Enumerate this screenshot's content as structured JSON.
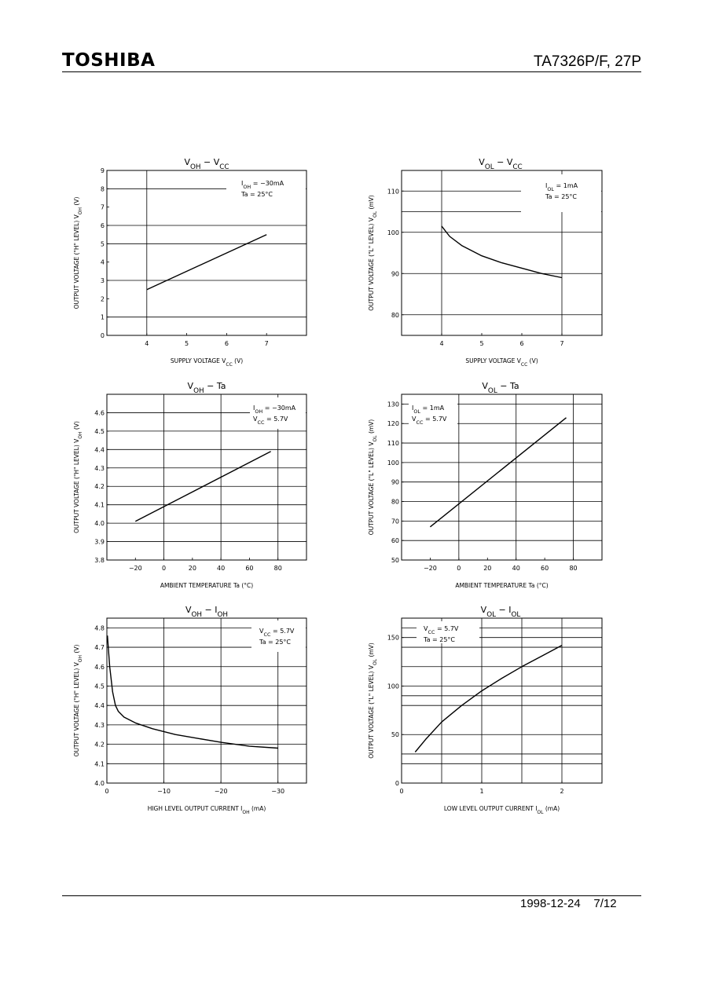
{
  "header": {
    "brand": "TOSHIBA",
    "part_number": "TA7326P/F, 27P"
  },
  "footer": {
    "date": "1998-12-24",
    "page": "7/12"
  },
  "chart_data": [
    {
      "type": "line",
      "title": {
        "main": "V",
        "sub": "OH",
        "mid": " − V",
        "sub2": "CC",
        "tail": ""
      },
      "xlabel": {
        "main": "SUPPLY VOLTAGE   V",
        "sub": "CC",
        "tail": "   (V)"
      },
      "ylabel": {
        "main": "OUTPUT VOLTAGE (\"H\" LEVEL)   V",
        "sub": "OH",
        "tail": "   (V)"
      },
      "xlim": [
        3,
        8
      ],
      "ylim": [
        0,
        9
      ],
      "xticks": [
        4,
        5,
        6,
        7
      ],
      "xtick_labels": [
        "4",
        "5",
        "6",
        "7"
      ],
      "yticks": [
        0,
        1,
        2,
        3,
        4,
        5,
        6,
        7,
        8,
        9
      ],
      "ytick_labels": [
        "0",
        "1",
        "2",
        "3",
        "4",
        "5",
        "6",
        "7",
        "8",
        "9"
      ],
      "hgrid": [
        1,
        3,
        5,
        6,
        8
      ],
      "vgrid": [
        4
      ],
      "conditions": [
        {
          "main": "I",
          "sub": "OH",
          "tail": " = −30mA"
        },
        {
          "main": "Ta = 25°C",
          "sub": "",
          "tail": ""
        }
      ],
      "series": [
        {
          "x": [
            4,
            7
          ],
          "y": [
            2.5,
            5.5
          ]
        }
      ]
    },
    {
      "type": "line",
      "title": {
        "main": "V",
        "sub": "OL",
        "mid": " − V",
        "sub2": "CC",
        "tail": ""
      },
      "xlabel": {
        "main": "SUPPLY VOLTAGE   V",
        "sub": "CC",
        "tail": "   (V)"
      },
      "ylabel": {
        "main": "OUTPUT VOLTAGE (\"L\" LEVEL)   V",
        "sub": "OL",
        "tail": "   (mV)"
      },
      "xlim": [
        3,
        8
      ],
      "ylim": [
        75,
        115
      ],
      "xticks": [
        4,
        5,
        6,
        7
      ],
      "xtick_labels": [
        "4",
        "5",
        "6",
        "7"
      ],
      "yticks": [
        80,
        90,
        100,
        110
      ],
      "ytick_labels": [
        "80",
        "90",
        "100",
        "110"
      ],
      "hgrid": [
        80,
        90,
        100,
        105,
        110
      ],
      "vgrid": [
        4,
        7
      ],
      "conditions": [
        {
          "main": "I",
          "sub": "OL",
          "tail": " = 1mA"
        },
        {
          "main": "Ta = 25°C",
          "sub": "",
          "tail": ""
        }
      ],
      "series": [
        {
          "x": [
            4.0,
            4.2,
            4.5,
            5.0,
            5.5,
            6.0,
            6.5,
            7.0
          ],
          "y": [
            101.5,
            99.0,
            96.8,
            94.3,
            92.6,
            91.3,
            90.0,
            89.0
          ]
        }
      ]
    },
    {
      "type": "line",
      "title": {
        "main": "V",
        "sub": "OH",
        "mid": " − Ta",
        "sub2": "",
        "tail": ""
      },
      "xlabel": {
        "main": "AMBIENT TEMPERATURE    Ta",
        "sub": "",
        "tail": "   (°C)"
      },
      "ylabel": {
        "main": "OUTPUT VOLTAGE (\"H\" LEVEL)   V",
        "sub": "OH",
        "tail": "   (V)"
      },
      "xlim": [
        -40,
        100
      ],
      "ylim": [
        3.8,
        4.7
      ],
      "xticks": [
        -20,
        0,
        20,
        40,
        60,
        80
      ],
      "xtick_labels": [
        "−20",
        "0",
        "20",
        "40",
        "60",
        "80"
      ],
      "yticks": [
        3.8,
        3.9,
        4.0,
        4.1,
        4.2,
        4.3,
        4.4,
        4.5,
        4.6
      ],
      "ytick_labels": [
        "3.8",
        "3.9",
        "4.0",
        "4.1",
        "4.2",
        "4.3",
        "4.4",
        "4.5",
        "4.6"
      ],
      "hgrid": [
        3.9,
        4.0,
        4.1,
        4.2,
        4.3,
        4.4,
        4.5,
        4.6
      ],
      "vgrid": [
        0,
        40,
        80
      ],
      "conditions": [
        {
          "main": "I",
          "sub": "OH",
          "tail": " = −30mA"
        },
        {
          "main": "V",
          "sub": "CC",
          "tail": " = 5.7V"
        }
      ],
      "series": [
        {
          "x": [
            -20,
            75
          ],
          "y": [
            4.01,
            4.39
          ]
        }
      ]
    },
    {
      "type": "line",
      "title": {
        "main": "V",
        "sub": "OL",
        "mid": " − Ta",
        "sub2": "",
        "tail": ""
      },
      "xlabel": {
        "main": "AMBIENT TEMPERATURE    Ta",
        "sub": "",
        "tail": "   (°C)"
      },
      "ylabel": {
        "main": "OUTPUT VOLTAGE (\"L\" LEVEL)   V",
        "sub": "OL",
        "tail": "   (mV)"
      },
      "xlim": [
        -40,
        100
      ],
      "ylim": [
        50,
        135
      ],
      "xticks": [
        -20,
        0,
        20,
        40,
        60,
        80
      ],
      "xtick_labels": [
        "−20",
        "0",
        "20",
        "40",
        "60",
        "80"
      ],
      "yticks": [
        50,
        60,
        70,
        80,
        90,
        100,
        110,
        120,
        130
      ],
      "ytick_labels": [
        "50",
        "60",
        "70",
        "80",
        "90",
        "100",
        "110",
        "120",
        "130"
      ],
      "hgrid": [
        60,
        70,
        80,
        90,
        100,
        110,
        120,
        130
      ],
      "vgrid": [
        0,
        40,
        80
      ],
      "conditions": [
        {
          "main": "I",
          "sub": "OL",
          "tail": " = 1mA"
        },
        {
          "main": "V",
          "sub": "CC",
          "tail": " = 5.7V"
        }
      ],
      "series": [
        {
          "x": [
            -20,
            75
          ],
          "y": [
            67,
            123
          ]
        }
      ]
    },
    {
      "type": "line",
      "title": {
        "main": "V",
        "sub": "OH",
        "mid": " − I",
        "sub2": "OH",
        "tail": ""
      },
      "xlabel": {
        "main": "HIGH LEVEL OUTPUT CURRENT   I",
        "sub": "OH",
        "tail": "   (mA)"
      },
      "ylabel": {
        "main": "OUTPUT VOLTAGE (\"H\" LEVEL)   V",
        "sub": "OH",
        "tail": "   (V)"
      },
      "xlim": [
        0,
        -35
      ],
      "ylim": [
        4.0,
        4.85
      ],
      "xticks": [
        0,
        -10,
        -20,
        -30
      ],
      "xtick_labels": [
        "0",
        "−10",
        "−20",
        "−30"
      ],
      "yticks": [
        4.0,
        4.1,
        4.2,
        4.3,
        4.4,
        4.5,
        4.6,
        4.7,
        4.8
      ],
      "ytick_labels": [
        "4.0",
        "4.1",
        "4.2",
        "4.3",
        "4.4",
        "4.5",
        "4.6",
        "4.7",
        "4.8"
      ],
      "hgrid": [
        4.1,
        4.2,
        4.3,
        4.4,
        4.5,
        4.6,
        4.7,
        4.8
      ],
      "vgrid": [
        -10,
        -20,
        -30
      ],
      "conditions": [
        {
          "main": "V",
          "sub": "CC",
          "tail": " = 5.7V"
        },
        {
          "main": "Ta = 25°C",
          "sub": "",
          "tail": ""
        }
      ],
      "series": [
        {
          "x": [
            -0.1,
            -0.5,
            -1,
            -1.5,
            -2,
            -3,
            -5,
            -8,
            -12,
            -16,
            -20,
            -25,
            -30
          ],
          "y": [
            4.76,
            4.6,
            4.47,
            4.4,
            4.37,
            4.34,
            4.31,
            4.28,
            4.25,
            4.23,
            4.21,
            4.19,
            4.18
          ]
        }
      ]
    },
    {
      "type": "line",
      "title": {
        "main": "V",
        "sub": "OL",
        "mid": " − I",
        "sub2": "OL",
        "tail": ""
      },
      "xlabel": {
        "main": "LOW LEVEL OUTPUT CURRENT   I",
        "sub": "OL",
        "tail": "   (mA)"
      },
      "ylabel": {
        "main": "OUTPUT VOLTAGE (\"L\" LEVEL)   V",
        "sub": "OL",
        "tail": "   (mV)"
      },
      "xlim": [
        0,
        2.5
      ],
      "ylim": [
        0,
        170
      ],
      "xticks": [
        0,
        1,
        2
      ],
      "xtick_labels": [
        "0",
        "1",
        "2"
      ],
      "yticks": [
        0,
        50,
        100,
        150
      ],
      "ytick_labels": [
        "0",
        "50",
        "100",
        "150"
      ],
      "hgrid": [
        20,
        30,
        50,
        80,
        90,
        100,
        120,
        140,
        150,
        160
      ],
      "vgrid": [
        0.5,
        1,
        1.5,
        2
      ],
      "conditions": [
        {
          "main": "V",
          "sub": "CC",
          "tail": " = 5.7V"
        },
        {
          "main": "Ta = 25°C",
          "sub": "",
          "tail": ""
        }
      ],
      "series": [
        {
          "x": [
            0.17,
            0.3,
            0.5,
            0.75,
            1.0,
            1.25,
            1.5,
            1.75,
            2.0
          ],
          "y": [
            32,
            45,
            63,
            80,
            95,
            108,
            120,
            131,
            142
          ]
        }
      ]
    }
  ]
}
